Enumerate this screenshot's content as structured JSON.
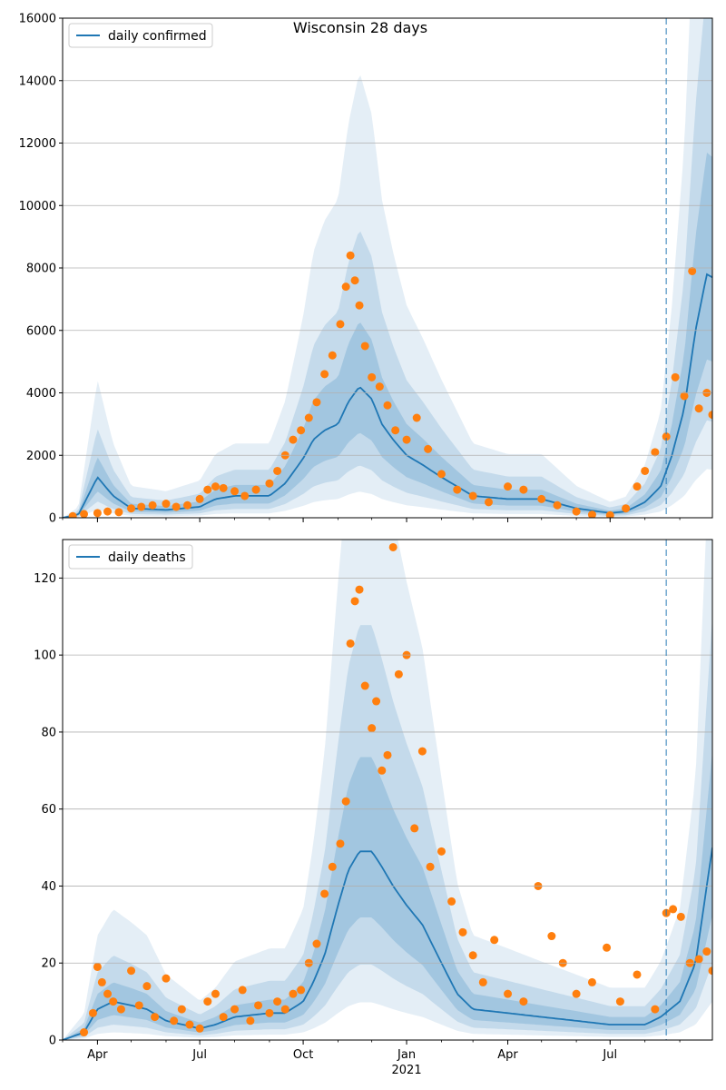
{
  "figure": {
    "title": "Wisconsin 28 days"
  },
  "colors": {
    "line": "#1f77b4",
    "points": "#ff7f0e",
    "band": "#1f77b4",
    "grid": "#b0b0b0",
    "vline": "#1f77b4"
  },
  "chart_data": [
    {
      "type": "line",
      "title": "Wisconsin 28 days",
      "legend": "daily confirmed",
      "legend_position": "top-left",
      "grid": true,
      "ylim": [
        0,
        16000
      ],
      "yticks": [
        0,
        2000,
        4000,
        6000,
        8000,
        10000,
        12000,
        14000,
        16000
      ],
      "xlim": [
        "2020-03-01",
        "2021-09-30"
      ],
      "xticks": [
        {
          "date": "2020-04-01",
          "label": "Apr"
        },
        {
          "date": "2020-07-01",
          "label": "Jul"
        },
        {
          "date": "2020-10-01",
          "label": "Oct"
        },
        {
          "date": "2021-01-01",
          "label": "Jan"
        },
        {
          "date": "2021-04-01",
          "label": "Apr"
        },
        {
          "date": "2021-07-01",
          "label": "Jul"
        }
      ],
      "year_label": {
        "date": "2021-01-01",
        "label": "2021"
      },
      "forecast_start": "2021-08-20",
      "series": [
        {
          "name": "daily confirmed",
          "kind": "model",
          "points": [
            [
              "2020-03-01",
              0
            ],
            [
              "2020-03-15",
              100
            ],
            [
              "2020-03-25",
              800
            ],
            [
              "2020-04-01",
              1300
            ],
            [
              "2020-04-15",
              700
            ],
            [
              "2020-05-01",
              300
            ],
            [
              "2020-06-01",
              250
            ],
            [
              "2020-07-01",
              350
            ],
            [
              "2020-07-15",
              600
            ],
            [
              "2020-08-01",
              700
            ],
            [
              "2020-09-01",
              700
            ],
            [
              "2020-09-15",
              1100
            ],
            [
              "2020-10-01",
              1900
            ],
            [
              "2020-10-10",
              2500
            ],
            [
              "2020-10-20",
              2800
            ],
            [
              "2020-11-01",
              3000
            ],
            [
              "2020-11-10",
              3700
            ],
            [
              "2020-11-20",
              4200
            ],
            [
              "2020-12-01",
              3800
            ],
            [
              "2020-12-10",
              3000
            ],
            [
              "2020-12-20",
              2500
            ],
            [
              "2021-01-01",
              2000
            ],
            [
              "2021-01-15",
              1700
            ],
            [
              "2021-02-01",
              1300
            ],
            [
              "2021-02-15",
              1000
            ],
            [
              "2021-03-01",
              700
            ],
            [
              "2021-04-01",
              600
            ],
            [
              "2021-05-01",
              600
            ],
            [
              "2021-06-01",
              300
            ],
            [
              "2021-07-01",
              150
            ],
            [
              "2021-07-15",
              200
            ],
            [
              "2021-08-01",
              500
            ],
            [
              "2021-08-15",
              1000
            ],
            [
              "2021-08-25",
              2000
            ],
            [
              "2021-09-05",
              3500
            ],
            [
              "2021-09-15",
              6000
            ],
            [
              "2021-09-25",
              7800
            ],
            [
              "2021-09-30",
              7700
            ]
          ]
        },
        {
          "name": "observed",
          "kind": "scatter",
          "points": [
            [
              "2020-03-10",
              50
            ],
            [
              "2020-03-20",
              120
            ],
            [
              "2020-04-01",
              150
            ],
            [
              "2020-04-10",
              200
            ],
            [
              "2020-04-20",
              180
            ],
            [
              "2020-05-01",
              300
            ],
            [
              "2020-05-10",
              350
            ],
            [
              "2020-05-20",
              400
            ],
            [
              "2020-06-01",
              450
            ],
            [
              "2020-06-10",
              350
            ],
            [
              "2020-06-20",
              400
            ],
            [
              "2020-07-01",
              600
            ],
            [
              "2020-07-08",
              900
            ],
            [
              "2020-07-15",
              1000
            ],
            [
              "2020-07-22",
              950
            ],
            [
              "2020-08-01",
              850
            ],
            [
              "2020-08-10",
              700
            ],
            [
              "2020-08-20",
              900
            ],
            [
              "2020-09-01",
              1100
            ],
            [
              "2020-09-08",
              1500
            ],
            [
              "2020-09-15",
              2000
            ],
            [
              "2020-09-22",
              2500
            ],
            [
              "2020-09-29",
              2800
            ],
            [
              "2020-10-06",
              3200
            ],
            [
              "2020-10-13",
              3700
            ],
            [
              "2020-10-20",
              4600
            ],
            [
              "2020-10-27",
              5200
            ],
            [
              "2020-11-03",
              6200
            ],
            [
              "2020-11-08",
              7400
            ],
            [
              "2020-11-12",
              8400
            ],
            [
              "2020-11-16",
              7600
            ],
            [
              "2020-11-20",
              6800
            ],
            [
              "2020-11-25",
              5500
            ],
            [
              "2020-12-01",
              4500
            ],
            [
              "2020-12-08",
              4200
            ],
            [
              "2020-12-15",
              3600
            ],
            [
              "2020-12-22",
              2800
            ],
            [
              "2021-01-01",
              2500
            ],
            [
              "2021-01-10",
              3200
            ],
            [
              "2021-01-20",
              2200
            ],
            [
              "2021-02-01",
              1400
            ],
            [
              "2021-02-15",
              900
            ],
            [
              "2021-03-01",
              700
            ],
            [
              "2021-03-15",
              500
            ],
            [
              "2021-04-01",
              1000
            ],
            [
              "2021-04-15",
              900
            ],
            [
              "2021-05-01",
              600
            ],
            [
              "2021-05-15",
              400
            ],
            [
              "2021-06-01",
              200
            ],
            [
              "2021-06-15",
              100
            ],
            [
              "2021-07-01",
              80
            ],
            [
              "2021-07-15",
              300
            ],
            [
              "2021-07-25",
              1000
            ],
            [
              "2021-08-01",
              1500
            ],
            [
              "2021-08-10",
              2100
            ],
            [
              "2021-08-20",
              2600
            ],
            [
              "2021-08-28",
              4500
            ],
            [
              "2021-09-05",
              3900
            ],
            [
              "2021-09-12",
              7900
            ],
            [
              "2021-09-18",
              3500
            ],
            [
              "2021-09-25",
              4000
            ],
            [
              "2021-09-30",
              3300
            ]
          ]
        }
      ]
    },
    {
      "type": "line",
      "legend": "daily deaths",
      "legend_position": "top-left",
      "grid": true,
      "ylim": [
        0,
        130
      ],
      "yticks": [
        0,
        20,
        40,
        60,
        80,
        100,
        120
      ],
      "xlim": [
        "2020-03-01",
        "2021-09-30"
      ],
      "xticks": [
        {
          "date": "2020-04-01",
          "label": "Apr"
        },
        {
          "date": "2020-07-01",
          "label": "Jul"
        },
        {
          "date": "2020-10-01",
          "label": "Oct"
        },
        {
          "date": "2021-01-01",
          "label": "Jan"
        },
        {
          "date": "2021-04-01",
          "label": "Apr"
        },
        {
          "date": "2021-07-01",
          "label": "Jul"
        }
      ],
      "year_label": {
        "date": "2021-01-01",
        "label": "2021"
      },
      "forecast_start": "2021-08-20",
      "series": [
        {
          "name": "daily deaths",
          "kind": "model",
          "points": [
            [
              "2020-03-01",
              0
            ],
            [
              "2020-03-20",
              2
            ],
            [
              "2020-04-01",
              8
            ],
            [
              "2020-04-15",
              10
            ],
            [
              "2020-05-01",
              9
            ],
            [
              "2020-05-15",
              8
            ],
            [
              "2020-06-01",
              5
            ],
            [
              "2020-07-01",
              3
            ],
            [
              "2020-07-15",
              4
            ],
            [
              "2020-08-01",
              6
            ],
            [
              "2020-09-01",
              7
            ],
            [
              "2020-09-15",
              7
            ],
            [
              "2020-10-01",
              10
            ],
            [
              "2020-10-10",
              15
            ],
            [
              "2020-10-20",
              22
            ],
            [
              "2020-11-01",
              35
            ],
            [
              "2020-11-10",
              44
            ],
            [
              "2020-11-20",
              49
            ],
            [
              "2020-12-01",
              49
            ],
            [
              "2020-12-10",
              45
            ],
            [
              "2020-12-20",
              40
            ],
            [
              "2021-01-01",
              35
            ],
            [
              "2021-01-15",
              30
            ],
            [
              "2021-02-01",
              20
            ],
            [
              "2021-02-15",
              12
            ],
            [
              "2021-03-01",
              8
            ],
            [
              "2021-04-01",
              7
            ],
            [
              "2021-05-01",
              6
            ],
            [
              "2021-06-01",
              5
            ],
            [
              "2021-07-01",
              4
            ],
            [
              "2021-08-01",
              4
            ],
            [
              "2021-08-15",
              6
            ],
            [
              "2021-09-01",
              10
            ],
            [
              "2021-09-15",
              20
            ],
            [
              "2021-09-25",
              40
            ],
            [
              "2021-09-30",
              50
            ]
          ]
        },
        {
          "name": "observed",
          "kind": "scatter",
          "points": [
            [
              "2020-03-20",
              2
            ],
            [
              "2020-03-28",
              7
            ],
            [
              "2020-04-01",
              19
            ],
            [
              "2020-04-05",
              15
            ],
            [
              "2020-04-10",
              12
            ],
            [
              "2020-04-15",
              10
            ],
            [
              "2020-04-22",
              8
            ],
            [
              "2020-05-01",
              18
            ],
            [
              "2020-05-08",
              9
            ],
            [
              "2020-05-15",
              14
            ],
            [
              "2020-05-22",
              6
            ],
            [
              "2020-06-01",
              16
            ],
            [
              "2020-06-08",
              5
            ],
            [
              "2020-06-15",
              8
            ],
            [
              "2020-06-22",
              4
            ],
            [
              "2020-07-01",
              3
            ],
            [
              "2020-07-08",
              10
            ],
            [
              "2020-07-15",
              12
            ],
            [
              "2020-07-22",
              6
            ],
            [
              "2020-08-01",
              8
            ],
            [
              "2020-08-08",
              13
            ],
            [
              "2020-08-15",
              5
            ],
            [
              "2020-08-22",
              9
            ],
            [
              "2020-09-01",
              7
            ],
            [
              "2020-09-08",
              10
            ],
            [
              "2020-09-15",
              8
            ],
            [
              "2020-09-22",
              12
            ],
            [
              "2020-09-29",
              13
            ],
            [
              "2020-10-06",
              20
            ],
            [
              "2020-10-13",
              25
            ],
            [
              "2020-10-20",
              38
            ],
            [
              "2020-10-27",
              45
            ],
            [
              "2020-11-03",
              51
            ],
            [
              "2020-11-08",
              62
            ],
            [
              "2020-11-12",
              103
            ],
            [
              "2020-11-16",
              114
            ],
            [
              "2020-11-20",
              117
            ],
            [
              "2020-11-25",
              92
            ],
            [
              "2020-12-01",
              81
            ],
            [
              "2020-12-05",
              88
            ],
            [
              "2020-12-10",
              70
            ],
            [
              "2020-12-15",
              74
            ],
            [
              "2020-12-20",
              128
            ],
            [
              "2020-12-25",
              95
            ],
            [
              "2021-01-01",
              100
            ],
            [
              "2021-01-08",
              55
            ],
            [
              "2021-01-15",
              75
            ],
            [
              "2021-01-22",
              45
            ],
            [
              "2021-02-01",
              49
            ],
            [
              "2021-02-10",
              36
            ],
            [
              "2021-02-20",
              28
            ],
            [
              "2021-03-01",
              22
            ],
            [
              "2021-03-10",
              15
            ],
            [
              "2021-03-20",
              26
            ],
            [
              "2021-04-01",
              12
            ],
            [
              "2021-04-15",
              10
            ],
            [
              "2021-04-28",
              40
            ],
            [
              "2021-05-10",
              27
            ],
            [
              "2021-05-20",
              20
            ],
            [
              "2021-06-01",
              12
            ],
            [
              "2021-06-15",
              15
            ],
            [
              "2021-06-28",
              24
            ],
            [
              "2021-07-10",
              10
            ],
            [
              "2021-07-25",
              17
            ],
            [
              "2021-08-10",
              8
            ],
            [
              "2021-08-20",
              33
            ],
            [
              "2021-08-26",
              34
            ],
            [
              "2021-09-02",
              32
            ],
            [
              "2021-09-10",
              20
            ],
            [
              "2021-09-18",
              21
            ],
            [
              "2021-09-25",
              23
            ],
            [
              "2021-09-30",
              18
            ]
          ]
        }
      ]
    }
  ]
}
